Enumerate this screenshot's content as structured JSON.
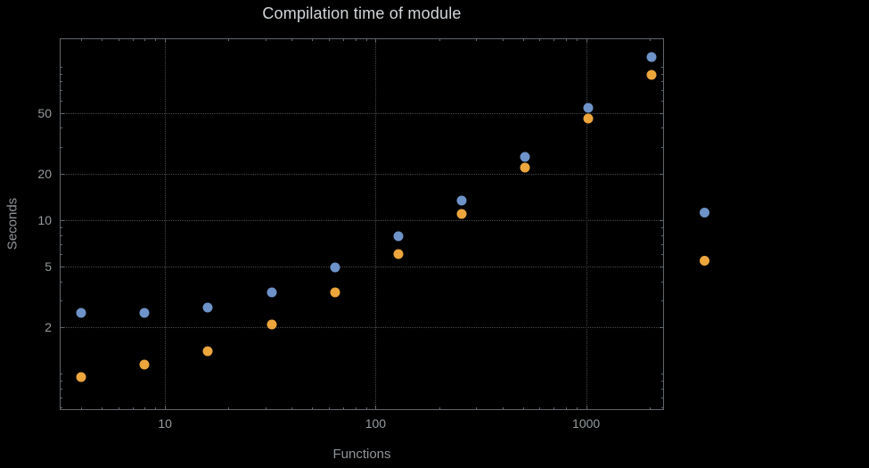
{
  "page": {
    "background": "#000000"
  },
  "chart_data": {
    "type": "scatter",
    "title": "Compilation time of module",
    "xlabel": "Functions",
    "ylabel": "Seconds",
    "x_scale": "log",
    "y_scale": "log",
    "grid": true,
    "legend_position": "right-outside",
    "xlim": [
      3.16,
      2344
    ],
    "ylim": [
      0.58,
      153
    ],
    "x_ticks": [
      10,
      100,
      1000
    ],
    "y_ticks": [
      2,
      5,
      10,
      20,
      50
    ],
    "x": [
      4,
      8,
      16,
      32,
      64,
      128,
      256,
      512,
      1024,
      2048
    ],
    "series": [
      {
        "name": "blue",
        "color": "#6e93c8",
        "values": [
          2.5,
          2.5,
          2.7,
          3.4,
          4.9,
          7.9,
          13.5,
          26,
          54,
          115
        ]
      },
      {
        "name": "orange",
        "color": "#eca63c",
        "values": [
          0.95,
          1.15,
          1.4,
          2.1,
          3.4,
          6.0,
          11,
          22,
          46,
          88
        ]
      }
    ]
  },
  "styles": {
    "frame_color": "#61666b",
    "grid_color": "#47494b",
    "tick_label_color": "#969b9f",
    "title_color": "#d2d6d9",
    "axis_label_color": "#8f9498"
  }
}
